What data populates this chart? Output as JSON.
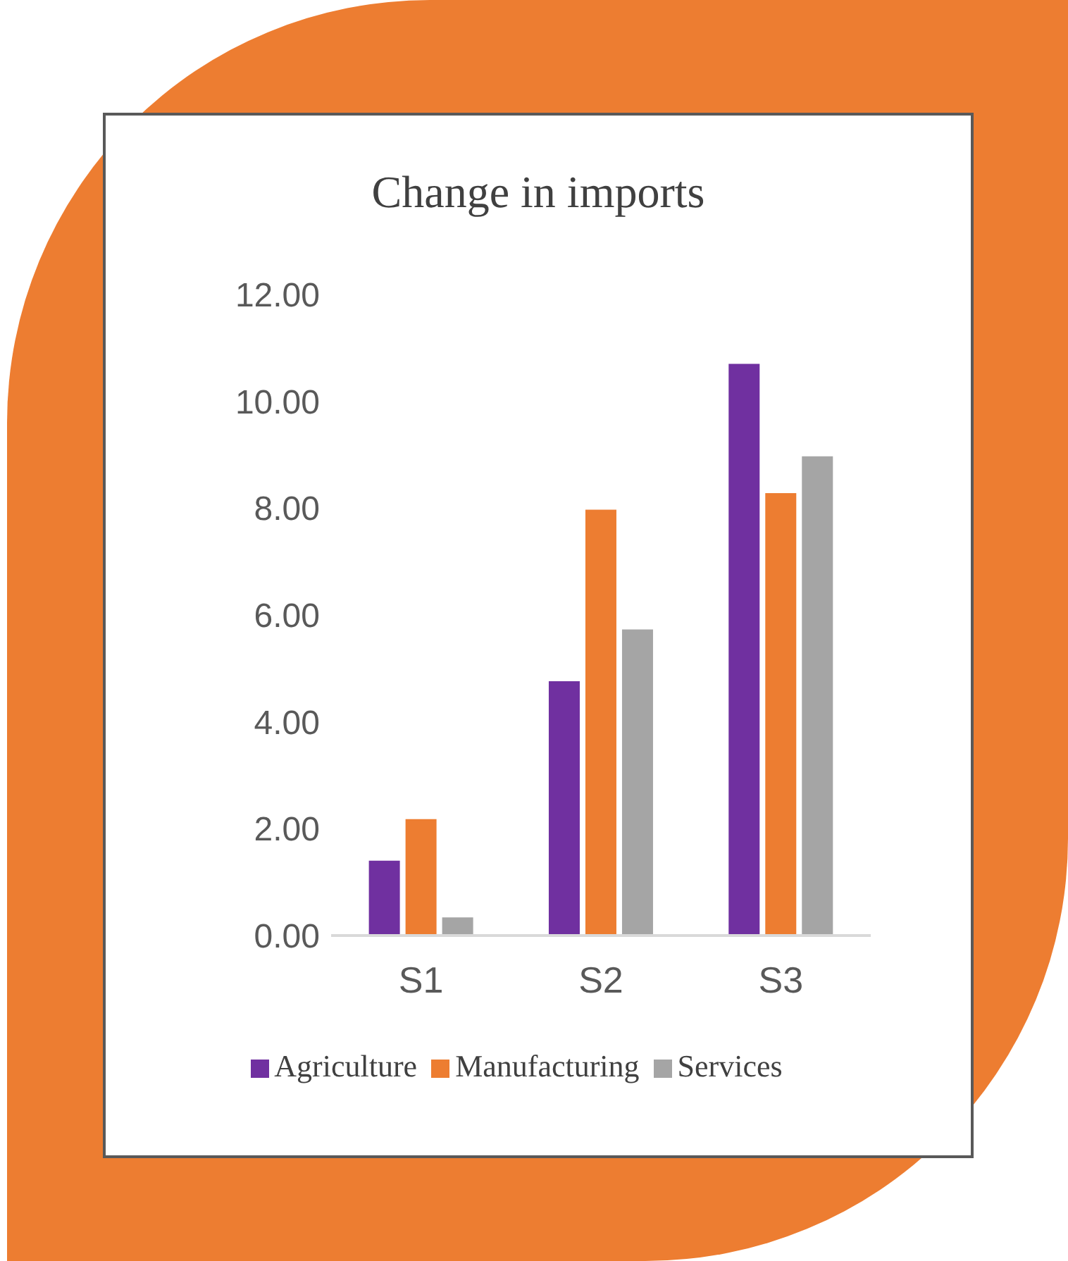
{
  "chart_data": {
    "type": "bar",
    "title": "Change in imports",
    "categories": [
      "S1",
      "S2",
      "S3"
    ],
    "series": [
      {
        "name": "Agriculture",
        "color": "#7030a0",
        "values": [
          1.4,
          4.76,
          10.7
        ]
      },
      {
        "name": "Manufacturing",
        "color": "#ed7d31",
        "values": [
          2.18,
          7.97,
          8.28
        ]
      },
      {
        "name": "Services",
        "color": "#a5a5a5",
        "values": [
          0.34,
          5.73,
          8.97
        ]
      }
    ],
    "ylim": [
      0,
      12
    ],
    "yticks": [
      {
        "value": 0,
        "label": "0.00"
      },
      {
        "value": 2,
        "label": "2.00"
      },
      {
        "value": 4,
        "label": "4.00"
      },
      {
        "value": 6,
        "label": "6.00"
      },
      {
        "value": 8,
        "label": "8.00"
      },
      {
        "value": 10,
        "label": "10.00"
      },
      {
        "value": 12,
        "label": "12.00"
      }
    ],
    "grid": false,
    "legend": "bottom"
  }
}
